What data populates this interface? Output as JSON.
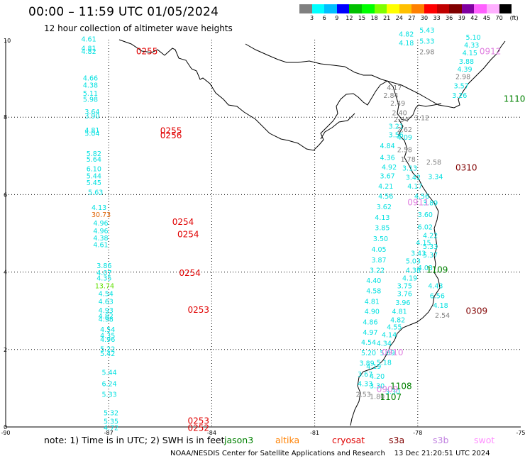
{
  "header": {
    "title": "00:00 – 11:59 UTC 01/05/2024",
    "subtitle": "12 hour collection of altimeter wave heights"
  },
  "colorbar": {
    "unit": "(ft)",
    "colors": [
      "#808080",
      "#00ffff",
      "#00bfff",
      "#0000ff",
      "#00c000",
      "#00ff00",
      "#80ff00",
      "#ffff00",
      "#ffc000",
      "#ff8000",
      "#ff0000",
      "#c00000",
      "#800000",
      "#8000a0",
      "#ff60ff",
      "#ffb0ff",
      "#000000"
    ],
    "labels": [
      "3",
      "6",
      "9",
      "12",
      "15",
      "18",
      "21",
      "24",
      "27",
      "30",
      "33",
      "36",
      "39",
      "42",
      "45",
      "70"
    ]
  },
  "axes": {
    "x_ticks": [
      "-90",
      "-87",
      "-84",
      "-81",
      "-78",
      "-75"
    ],
    "y_ticks": [
      "10",
      "8",
      "6",
      "4",
      "2",
      "0"
    ]
  },
  "observations": [
    {
      "lon": -87.8,
      "lat": 9.95,
      "v": "4.61",
      "c": "#00e0e0"
    },
    {
      "lon": -87.8,
      "lat": 9.72,
      "v": "4.81",
      "c": "#00e0e0"
    },
    {
      "lon": -87.8,
      "lat": 9.63,
      "v": "4.82",
      "c": "#00e0e0"
    },
    {
      "lon": -87.75,
      "lat": 8.95,
      "v": "4.66",
      "c": "#00e0e0"
    },
    {
      "lon": -87.75,
      "lat": 8.76,
      "v": "4.38",
      "c": "#00e0e0"
    },
    {
      "lon": -87.75,
      "lat": 8.55,
      "v": "5.11",
      "c": "#00e0e0"
    },
    {
      "lon": -87.75,
      "lat": 8.4,
      "v": "5.98",
      "c": "#00e0e0"
    },
    {
      "lon": -87.7,
      "lat": 8.08,
      "v": "3.64",
      "c": "#00e0e0"
    },
    {
      "lon": -87.7,
      "lat": 7.97,
      "v": "3.90",
      "c": "#00e0e0"
    },
    {
      "lon": -87.7,
      "lat": 7.6,
      "v": "4.81",
      "c": "#00e0e0"
    },
    {
      "lon": -87.7,
      "lat": 7.52,
      "v": "5.04",
      "c": "#00e0e0"
    },
    {
      "lon": -87.65,
      "lat": 7.0,
      "v": "5.82",
      "c": "#00e0e0"
    },
    {
      "lon": -87.65,
      "lat": 6.85,
      "v": "5.64",
      "c": "#00e0e0"
    },
    {
      "lon": -87.65,
      "lat": 6.6,
      "v": "6.10",
      "c": "#00e0e0"
    },
    {
      "lon": -87.65,
      "lat": 6.42,
      "v": "5.44",
      "c": "#00e0e0"
    },
    {
      "lon": -87.65,
      "lat": 6.25,
      "v": "5.45",
      "c": "#00e0e0"
    },
    {
      "lon": -87.6,
      "lat": 6.0,
      "v": "5.63",
      "c": "#00e0e0"
    },
    {
      "lon": -87.5,
      "lat": 5.6,
      "v": "4.13",
      "c": "#00e0e0"
    },
    {
      "lon": -87.5,
      "lat": 5.42,
      "v": "30.73",
      "c": "#e06000"
    },
    {
      "lon": -87.45,
      "lat": 5.2,
      "v": "4.96",
      "c": "#00e0e0"
    },
    {
      "lon": -87.45,
      "lat": 5.0,
      "v": "4.96",
      "c": "#00e0e0"
    },
    {
      "lon": -87.45,
      "lat": 4.82,
      "v": "4.38",
      "c": "#00e0e0"
    },
    {
      "lon": -87.45,
      "lat": 4.64,
      "v": "4.61",
      "c": "#00e0e0"
    },
    {
      "lon": -87.35,
      "lat": 4.1,
      "v": "3.86",
      "c": "#00e0e0"
    },
    {
      "lon": -87.35,
      "lat": 3.92,
      "v": "4.07",
      "c": "#00e0e0"
    },
    {
      "lon": -87.35,
      "lat": 3.78,
      "v": "4.35",
      "c": "#00e0e0"
    },
    {
      "lon": -87.4,
      "lat": 3.58,
      "v": "13.74",
      "c": "#60e000"
    },
    {
      "lon": -87.3,
      "lat": 3.38,
      "v": "4.54",
      "c": "#00e0e0"
    },
    {
      "lon": -87.3,
      "lat": 3.18,
      "v": "4.63",
      "c": "#00e0e0"
    },
    {
      "lon": -87.3,
      "lat": 2.95,
      "v": "4.93",
      "c": "#00e0e0"
    },
    {
      "lon": -87.3,
      "lat": 2.8,
      "v": "4.82",
      "c": "#00e0e0"
    },
    {
      "lon": -87.3,
      "lat": 2.72,
      "v": "4.98",
      "c": "#00e0e0"
    },
    {
      "lon": -87.25,
      "lat": 2.45,
      "v": "4.54",
      "c": "#00e0e0"
    },
    {
      "lon": -87.25,
      "lat": 2.3,
      "v": "4.35",
      "c": "#00e0e0"
    },
    {
      "lon": -87.25,
      "lat": 2.2,
      "v": "4.96",
      "c": "#00e0e0"
    },
    {
      "lon": -87.25,
      "lat": 1.95,
      "v": "5.22",
      "c": "#00e0e0"
    },
    {
      "lon": -87.25,
      "lat": 1.83,
      "v": "5.42",
      "c": "#00e0e0"
    },
    {
      "lon": -87.2,
      "lat": 1.35,
      "v": "5.44",
      "c": "#00e0e0"
    },
    {
      "lon": -87.2,
      "lat": 1.05,
      "v": "6.24",
      "c": "#00e0e0"
    },
    {
      "lon": -87.2,
      "lat": 0.78,
      "v": "5.33",
      "c": "#00e0e0"
    },
    {
      "lon": -87.15,
      "lat": 0.3,
      "v": "5.32",
      "c": "#00e0e0"
    },
    {
      "lon": -87.15,
      "lat": 0.08,
      "v": "5.35",
      "c": "#00e0e0"
    },
    {
      "lon": -87.15,
      "lat": -0.08,
      "v": "4.72",
      "c": "#00e0e0"
    },
    {
      "lon": -78.55,
      "lat": 10.08,
      "v": "4.82",
      "c": "#00e0e0"
    },
    {
      "lon": -77.95,
      "lat": 10.18,
      "v": "5.43",
      "c": "#00e0e0"
    },
    {
      "lon": -78.55,
      "lat": 9.85,
      "v": "4.18",
      "c": "#00e0e0"
    },
    {
      "lon": -77.95,
      "lat": 9.9,
      "v": "5.33",
      "c": "#00e0e0"
    },
    {
      "lon": -77.95,
      "lat": 9.62,
      "v": "2.98",
      "c": "#808080"
    },
    {
      "lon": -76.6,
      "lat": 10.0,
      "v": "5.10",
      "c": "#00e0e0"
    },
    {
      "lon": -76.65,
      "lat": 9.8,
      "v": "4.33",
      "c": "#00e0e0"
    },
    {
      "lon": -76.7,
      "lat": 9.6,
      "v": "4.15",
      "c": "#00e0e0"
    },
    {
      "lon": -76.8,
      "lat": 9.38,
      "v": "3.88",
      "c": "#00e0e0"
    },
    {
      "lon": -76.85,
      "lat": 9.18,
      "v": "4.39",
      "c": "#00e0e0"
    },
    {
      "lon": -76.9,
      "lat": 8.98,
      "v": "2.98",
      "c": "#808080"
    },
    {
      "lon": -76.95,
      "lat": 8.75,
      "v": "3.57",
      "c": "#00e0e0"
    },
    {
      "lon": -77.0,
      "lat": 8.5,
      "v": "3.26",
      "c": "#00e0e0"
    },
    {
      "lon": -78.9,
      "lat": 8.7,
      "v": "4.17",
      "c": "#808080"
    },
    {
      "lon": -79.0,
      "lat": 8.5,
      "v": "2.84",
      "c": "#808080"
    },
    {
      "lon": -78.8,
      "lat": 8.3,
      "v": "2.49",
      "c": "#808080"
    },
    {
      "lon": -78.75,
      "lat": 8.05,
      "v": "2.40",
      "c": "#808080"
    },
    {
      "lon": -78.7,
      "lat": 7.88,
      "v": "2.94",
      "c": "#808080"
    },
    {
      "lon": -78.85,
      "lat": 7.7,
      "v": "3.21",
      "c": "#00e0e0"
    },
    {
      "lon": -78.6,
      "lat": 7.62,
      "v": "2.62",
      "c": "#808080"
    },
    {
      "lon": -78.85,
      "lat": 7.48,
      "v": "3.56",
      "c": "#00e0e0"
    },
    {
      "lon": -78.6,
      "lat": 7.42,
      "v": "4.09",
      "c": "#00e0e0"
    },
    {
      "lon": -79.1,
      "lat": 7.2,
      "v": "4.84",
      "c": "#00e0e0"
    },
    {
      "lon": -78.6,
      "lat": 7.1,
      "v": "2.58",
      "c": "#808080"
    },
    {
      "lon": -79.1,
      "lat": 6.9,
      "v": "4.36",
      "c": "#00e0e0"
    },
    {
      "lon": -78.5,
      "lat": 6.85,
      "v": "1.78",
      "c": "#808080"
    },
    {
      "lon": -79.05,
      "lat": 6.65,
      "v": "4.92",
      "c": "#00e0e0"
    },
    {
      "lon": -78.45,
      "lat": 6.62,
      "v": "3.13",
      "c": "#00e0e0"
    },
    {
      "lon": -77.75,
      "lat": 6.78,
      "v": "2.58",
      "c": "#808080"
    },
    {
      "lon": -79.1,
      "lat": 6.42,
      "v": "3.67",
      "c": "#00e0e0"
    },
    {
      "lon": -78.35,
      "lat": 6.38,
      "v": "3.42",
      "c": "#00e0e0"
    },
    {
      "lon": -77.7,
      "lat": 6.4,
      "v": "3.34",
      "c": "#00e0e0"
    },
    {
      "lon": -79.15,
      "lat": 6.15,
      "v": "4.21",
      "c": "#00e0e0"
    },
    {
      "lon": -78.3,
      "lat": 6.15,
      "v": "4.17",
      "c": "#00e0e0"
    },
    {
      "lon": -79.15,
      "lat": 5.9,
      "v": "4.56",
      "c": "#00e0e0"
    },
    {
      "lon": -78.1,
      "lat": 5.9,
      "v": "4.56",
      "c": "#00e0e0"
    },
    {
      "lon": -79.2,
      "lat": 5.62,
      "v": "3.62",
      "c": "#00e0e0"
    },
    {
      "lon": -77.85,
      "lat": 5.72,
      "v": "3.89",
      "c": "#00e0e0"
    },
    {
      "lon": -79.25,
      "lat": 5.35,
      "v": "4.13",
      "c": "#00e0e0"
    },
    {
      "lon": -78.0,
      "lat": 5.42,
      "v": "3.60",
      "c": "#00e0e0"
    },
    {
      "lon": -79.25,
      "lat": 5.08,
      "v": "3.85",
      "c": "#00e0e0"
    },
    {
      "lon": -78.0,
      "lat": 5.1,
      "v": "6.02",
      "c": "#00e0e0"
    },
    {
      "lon": -79.3,
      "lat": 4.8,
      "v": "3.50",
      "c": "#00e0e0"
    },
    {
      "lon": -77.85,
      "lat": 4.88,
      "v": "4.22",
      "c": "#00e0e0"
    },
    {
      "lon": -79.35,
      "lat": 4.52,
      "v": "4.05",
      "c": "#00e0e0"
    },
    {
      "lon": -77.85,
      "lat": 4.6,
      "v": "5.33",
      "c": "#00e0e0"
    },
    {
      "lon": -78.05,
      "lat": 4.7,
      "v": "4.15",
      "c": "#00e0e0"
    },
    {
      "lon": -78.2,
      "lat": 4.42,
      "v": "3.43",
      "c": "#00e0e0"
    },
    {
      "lon": -77.85,
      "lat": 4.38,
      "v": "5.37",
      "c": "#00e0e0"
    },
    {
      "lon": -79.35,
      "lat": 4.25,
      "v": "3.87",
      "c": "#00e0e0"
    },
    {
      "lon": -78.35,
      "lat": 4.22,
      "v": "5.03",
      "c": "#00e0e0"
    },
    {
      "lon": -79.4,
      "lat": 3.98,
      "v": "3.22",
      "c": "#00e0e0"
    },
    {
      "lon": -78.35,
      "lat": 3.98,
      "v": "4.38",
      "c": "#00e0e0"
    },
    {
      "lon": -79.5,
      "lat": 3.72,
      "v": "4.40",
      "c": "#00e0e0"
    },
    {
      "lon": -78.45,
      "lat": 3.78,
      "v": "4.19",
      "c": "#00e0e0"
    },
    {
      "lon": -78.6,
      "lat": 3.58,
      "v": "3.75",
      "c": "#00e0e0"
    },
    {
      "lon": -77.7,
      "lat": 3.58,
      "v": "4.43",
      "c": "#00e0e0"
    },
    {
      "lon": -79.5,
      "lat": 3.45,
      "v": "4.58",
      "c": "#00e0e0"
    },
    {
      "lon": -78.6,
      "lat": 3.38,
      "v": "3.76",
      "c": "#00e0e0"
    },
    {
      "lon": -77.65,
      "lat": 3.32,
      "v": "6.56",
      "c": "#00e0e0"
    },
    {
      "lon": -79.55,
      "lat": 3.18,
      "v": "4.81",
      "c": "#00e0e0"
    },
    {
      "lon": -78.65,
      "lat": 3.15,
      "v": "3.96",
      "c": "#00e0e0"
    },
    {
      "lon": -77.55,
      "lat": 3.08,
      "v": "4.18",
      "c": "#00e0e0"
    },
    {
      "lon": -79.55,
      "lat": 2.92,
      "v": "4.90",
      "c": "#00e0e0"
    },
    {
      "lon": -78.75,
      "lat": 2.92,
      "v": "4.81",
      "c": "#00e0e0"
    },
    {
      "lon": -77.5,
      "lat": 2.82,
      "v": "2.54",
      "c": "#808080"
    },
    {
      "lon": -79.6,
      "lat": 2.65,
      "v": "4.86",
      "c": "#00e0e0"
    },
    {
      "lon": -78.8,
      "lat": 2.7,
      "v": "4.82",
      "c": "#00e0e0"
    },
    {
      "lon": -78.9,
      "lat": 2.52,
      "v": "4.55",
      "c": "#00e0e0"
    },
    {
      "lon": -79.6,
      "lat": 2.38,
      "v": "4.97",
      "c": "#00e0e0"
    },
    {
      "lon": -79.05,
      "lat": 2.32,
      "v": "4.14",
      "c": "#00e0e0"
    },
    {
      "lon": -79.65,
      "lat": 2.12,
      "v": "4.54",
      "c": "#00e0e0"
    },
    {
      "lon": -79.2,
      "lat": 2.1,
      "v": "4.34",
      "c": "#00e0e0"
    },
    {
      "lon": -79.65,
      "lat": 1.85,
      "v": "5.20",
      "c": "#00e0e0"
    },
    {
      "lon": -79.1,
      "lat": 1.85,
      "v": "5.09",
      "c": "#00e0e0"
    },
    {
      "lon": -79.7,
      "lat": 1.58,
      "v": "3.89",
      "c": "#00e0e0"
    },
    {
      "lon": -79.2,
      "lat": 1.6,
      "v": "5.18",
      "c": "#00e0e0"
    },
    {
      "lon": -79.5,
      "lat": 1.5,
      "v": "4.19",
      "c": "#00e0e0"
    },
    {
      "lon": -79.75,
      "lat": 1.3,
      "v": "3.67",
      "c": "#00e0e0"
    },
    {
      "lon": -79.4,
      "lat": 1.25,
      "v": "4.20",
      "c": "#00e0e0"
    },
    {
      "lon": -79.75,
      "lat": 1.05,
      "v": "4.33",
      "c": "#00e0e0"
    },
    {
      "lon": -79.4,
      "lat": 1.0,
      "v": "3.30",
      "c": "#00e0e0"
    },
    {
      "lon": -79.8,
      "lat": 0.78,
      "v": "2.53",
      "c": "#808080"
    },
    {
      "lon": -79.4,
      "lat": 0.72,
      "v": "1.80",
      "c": "#808080"
    },
    {
      "lon": -78.95,
      "lat": 0.85,
      "v": "3.30",
      "c": "#00e0e0"
    },
    {
      "lon": -78.1,
      "lat": 7.92,
      "v": "3.12",
      "c": "#808080"
    },
    {
      "lon": -78.0,
      "lat": 4.05,
      "v": "4.03",
      "c": "#00e0e0"
    }
  ],
  "passes": [
    {
      "lon": -86.2,
      "lat": 9.62,
      "id": "0255",
      "c": "#e00000"
    },
    {
      "lon": -85.5,
      "lat": 7.57,
      "id": "0255",
      "c": "#e00000"
    },
    {
      "lon": -85.5,
      "lat": 7.45,
      "id": "0256",
      "c": "#e00000"
    },
    {
      "lon": -85.15,
      "lat": 5.22,
      "id": "0254",
      "c": "#e00000"
    },
    {
      "lon": -85.0,
      "lat": 4.9,
      "id": "0254",
      "c": "#e00000"
    },
    {
      "lon": -84.95,
      "lat": 3.9,
      "id": "0254",
      "c": "#e00000"
    },
    {
      "lon": -84.7,
      "lat": 2.95,
      "id": "0253",
      "c": "#e00000"
    },
    {
      "lon": -84.7,
      "lat": 0.08,
      "id": "0253",
      "c": "#e00000"
    },
    {
      "lon": -84.7,
      "lat": -0.1,
      "id": "0252",
      "c": "#e00000"
    },
    {
      "lon": -76.2,
      "lat": 9.62,
      "id": "0912",
      "c": "#e080e0"
    },
    {
      "lon": -75.5,
      "lat": 8.4,
      "id": "1110",
      "c": "#008000"
    },
    {
      "lon": -76.9,
      "lat": 6.62,
      "id": "0310",
      "c": "#800000"
    },
    {
      "lon": -78.3,
      "lat": 5.72,
      "id": "0911",
      "c": "#e080e0"
    },
    {
      "lon": -77.75,
      "lat": 3.98,
      "id": "1109",
      "c": "#008000"
    },
    {
      "lon": -76.6,
      "lat": 2.92,
      "id": "0309",
      "c": "#800000"
    },
    {
      "lon": -79.05,
      "lat": 1.85,
      "id": "0910",
      "c": "#e080e0"
    },
    {
      "lon": -78.8,
      "lat": 0.98,
      "id": "1108",
      "c": "#008000"
    },
    {
      "lon": -79.1,
      "lat": 0.7,
      "id": "1107",
      "c": "#008000"
    },
    {
      "lon": -79.2,
      "lat": 0.9,
      "id": "0909",
      "c": "#e080e0"
    }
  ],
  "footer": {
    "note": "note:  1) Time is in UTC;  2) SWH is in feet",
    "legend": [
      {
        "label": "jason3",
        "color": "#008000"
      },
      {
        "label": "altika",
        "color": "#ff8000"
      },
      {
        "label": "cryosat",
        "color": "#e00000"
      },
      {
        "label": "s3a",
        "color": "#800000"
      },
      {
        "label": "s3b",
        "color": "#c080e0"
      },
      {
        "label": "swot",
        "color": "#ff90ff"
      }
    ],
    "credit": "NOAA/NESDIS Center for Satellite Applications and Research",
    "timestamp": "13 Dec 21:20:51 UTC 2024"
  }
}
